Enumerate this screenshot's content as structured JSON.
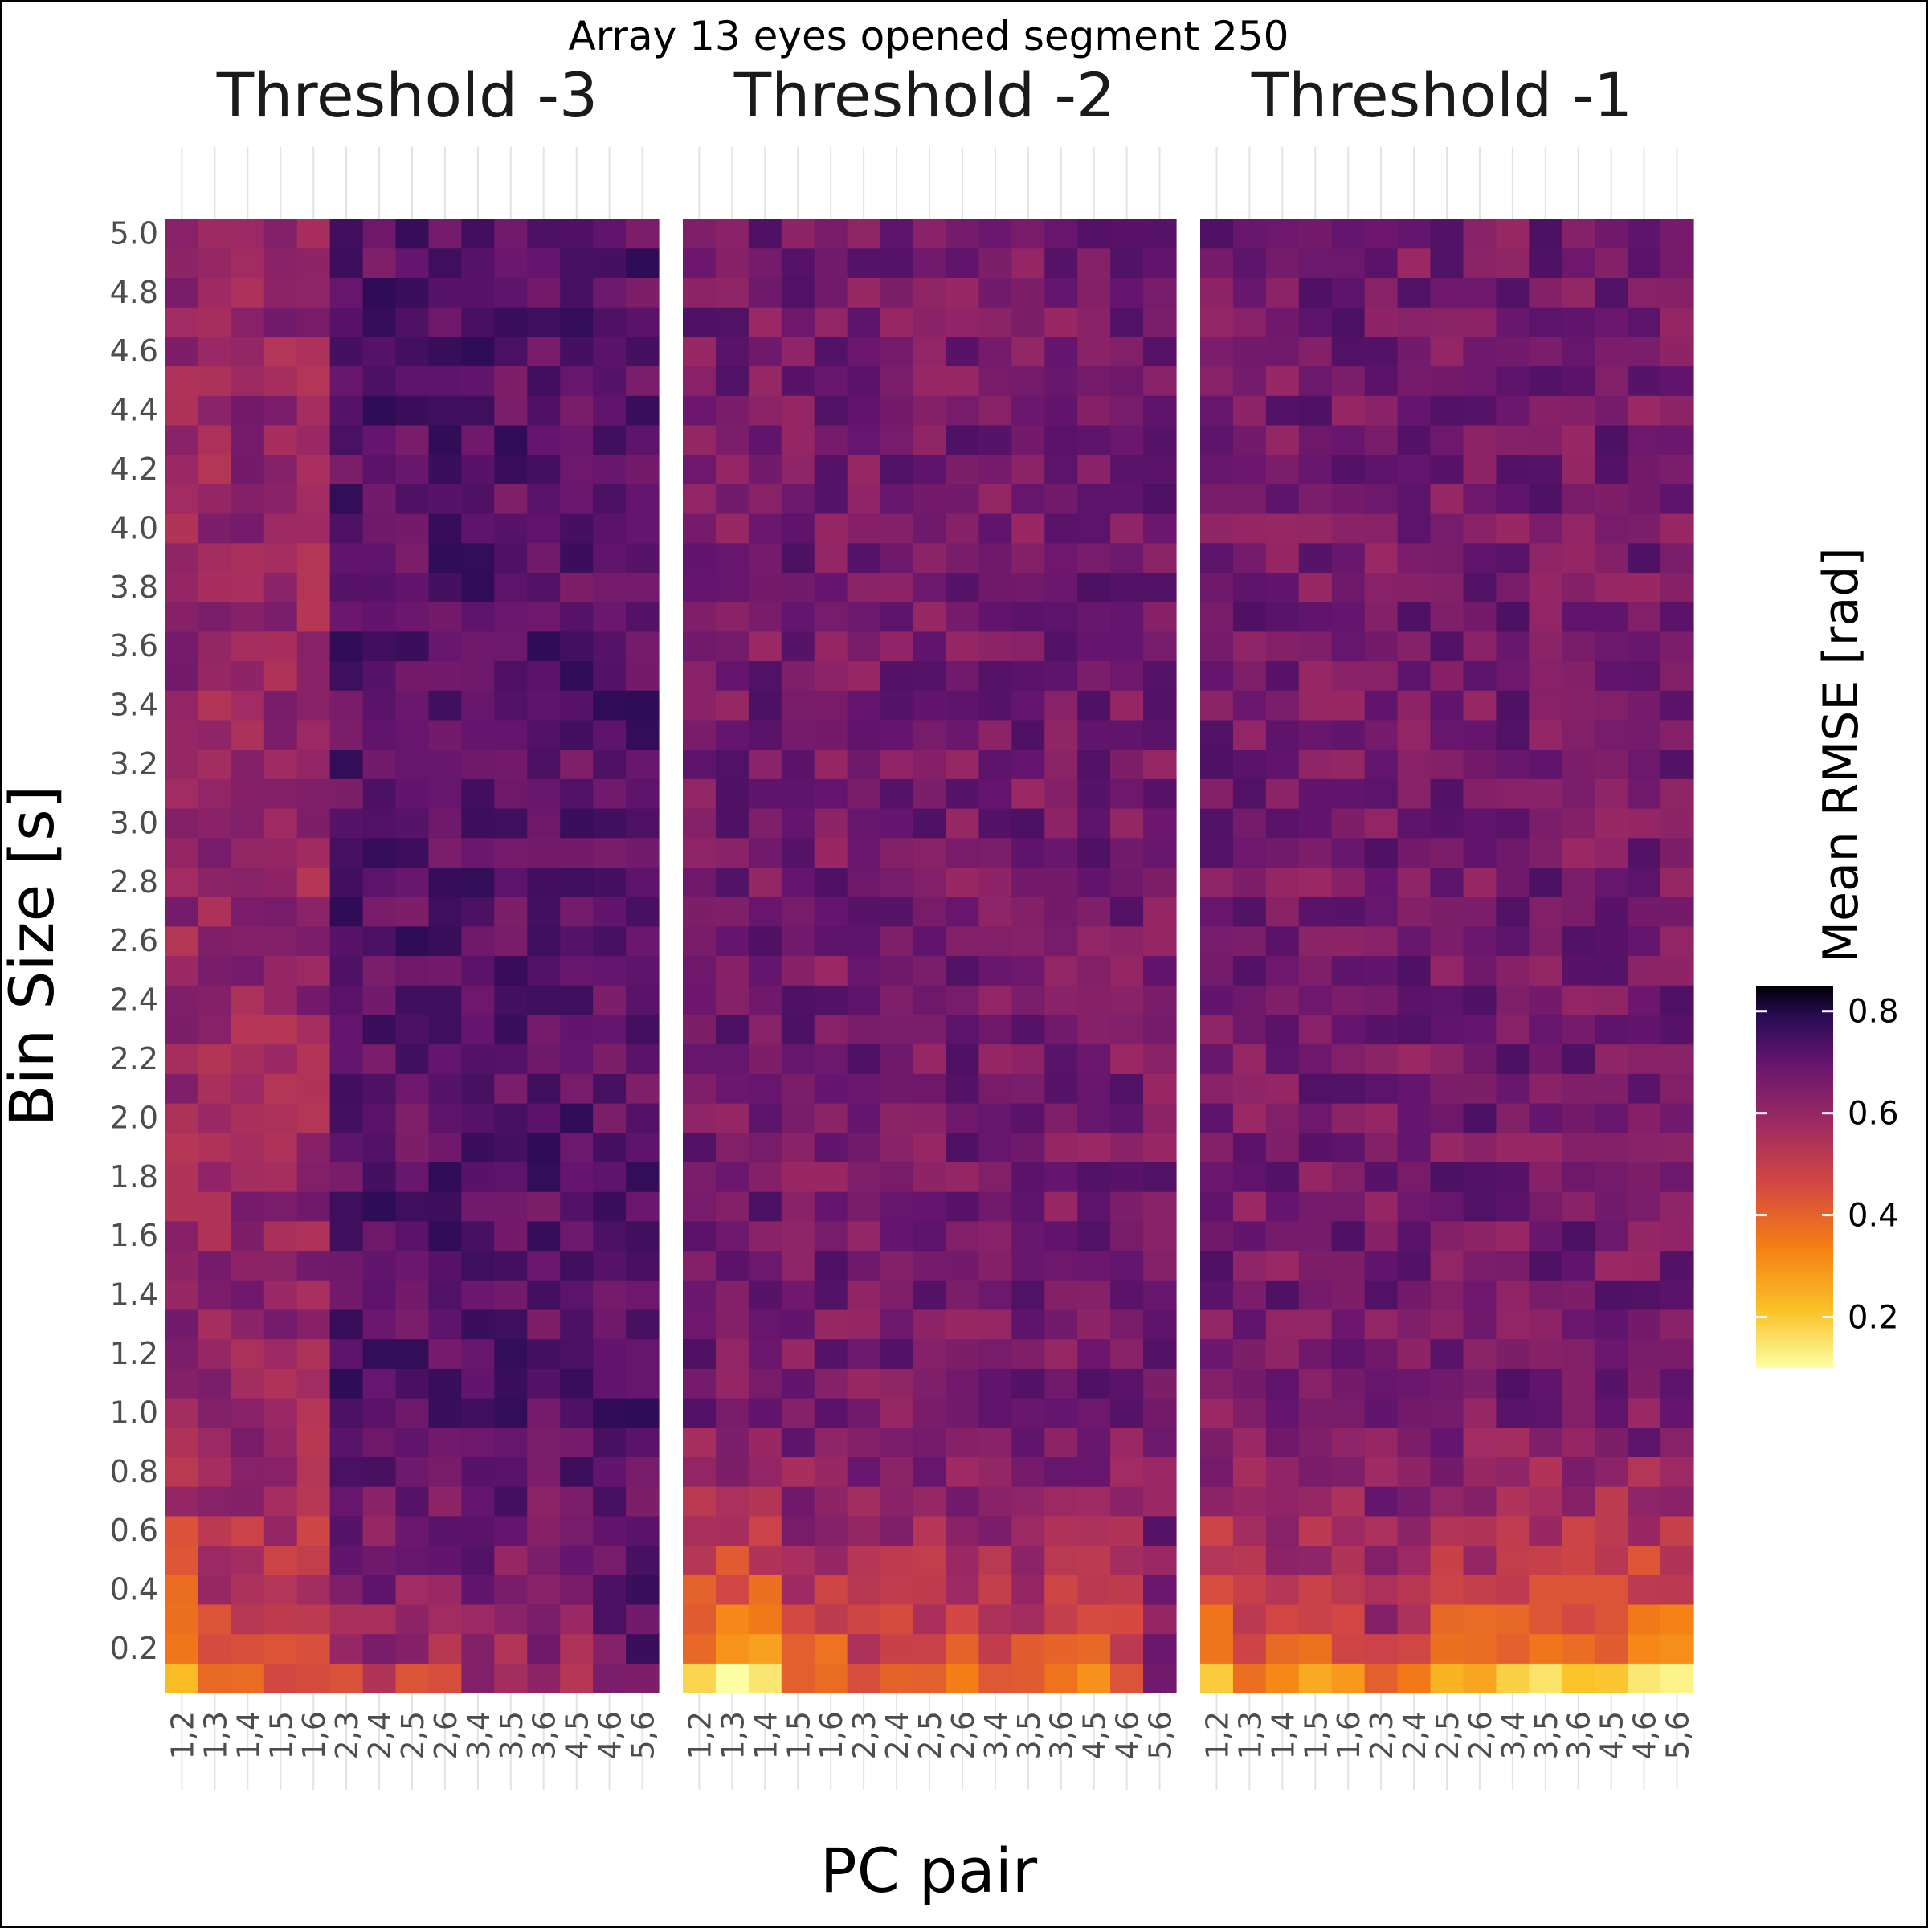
{
  "chart_data": {
    "type": "heatmap",
    "title": "Array 13 eyes opened segment 250",
    "xlabel": "PC pair",
    "ylabel": "Bin Size [s]",
    "facets": [
      "Threshold -3",
      "Threshold -2",
      "Threshold -1"
    ],
    "x_categories": [
      "1,2",
      "1,3",
      "1,4",
      "1,5",
      "1,6",
      "2,3",
      "2,4",
      "2,5",
      "2,6",
      "3,4",
      "3,5",
      "3,6",
      "4,5",
      "4,6",
      "5,6"
    ],
    "y_values": [
      0.1,
      0.2,
      0.3,
      0.4,
      0.5,
      0.6,
      0.7,
      0.8,
      0.9,
      1.0,
      1.1,
      1.2,
      1.3,
      1.4,
      1.5,
      1.6,
      1.7,
      1.8,
      1.9,
      2.0,
      2.1,
      2.2,
      2.3,
      2.4,
      2.5,
      2.6,
      2.7,
      2.8,
      2.9,
      3.0,
      3.1,
      3.2,
      3.3,
      3.4,
      3.5,
      3.6,
      3.7,
      3.8,
      3.9,
      4.0,
      4.1,
      4.2,
      4.3,
      4.4,
      4.5,
      4.6,
      4.7,
      4.8,
      4.9,
      5.0
    ],
    "y_ticks": [
      "0.2",
      "0.4",
      "0.6",
      "0.8",
      "1.0",
      "1.2",
      "1.4",
      "1.6",
      "1.8",
      "2.0",
      "2.2",
      "2.4",
      "2.6",
      "2.8",
      "3.0",
      "3.2",
      "3.4",
      "3.6",
      "3.8",
      "4.0",
      "4.2",
      "4.4",
      "4.6",
      "4.8",
      "5.0"
    ],
    "ylim": [
      0.05,
      5.05
    ],
    "grid": true,
    "colorbar": {
      "label": "Mean RMSE [rad]",
      "range": [
        0.1,
        0.85
      ],
      "ticks": [
        "0.2",
        "0.4",
        "0.6",
        "0.8"
      ],
      "colormap": "inferno (reversed)",
      "placement": "right"
    },
    "value_pattern_note_free_estimates": [
      [
        0.22,
        0.4,
        0.38,
        0.38,
        0.37,
        0.45,
        0.5,
        0.46,
        0.49,
        0.55,
        0.48,
        0.52,
        0.5,
        0.62,
        0.66
      ],
      [
        0.15,
        0.14,
        0.1,
        0.35,
        0.3,
        0.38,
        0.38,
        0.35,
        0.32,
        0.35,
        0.36,
        0.34,
        0.33,
        0.38,
        0.62
      ],
      [
        0.12,
        0.38,
        0.32,
        0.3,
        0.28,
        0.45,
        0.3,
        0.25,
        0.24,
        0.2,
        0.2,
        0.22,
        0.21,
        0.15,
        0.15
      ]
    ]
  }
}
